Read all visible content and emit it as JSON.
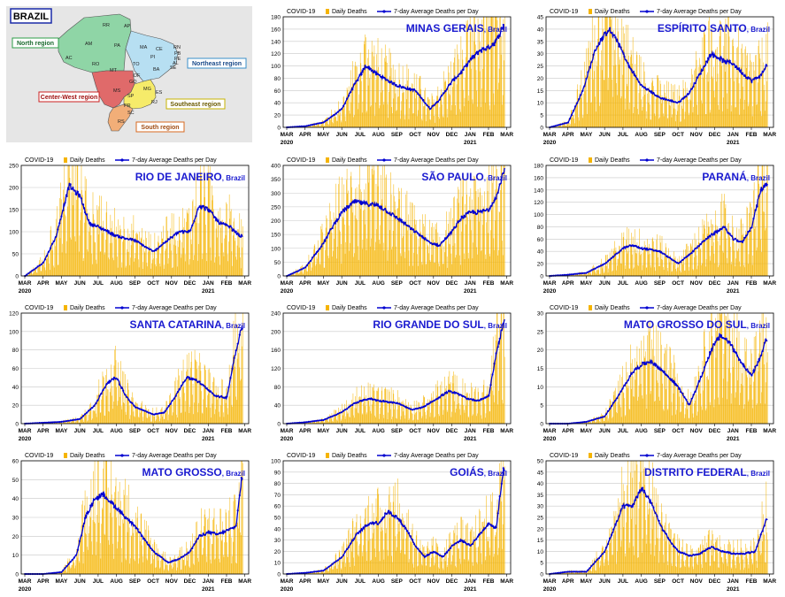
{
  "map": {
    "title": "BRAZIL",
    "regions": [
      {
        "name": "North region",
        "color": "#8fd5a6"
      },
      {
        "name": "Northeast region",
        "color": "#b7dff2"
      },
      {
        "name": "Center-West region",
        "color": "#e06a6a"
      },
      {
        "name": "Southeast region",
        "color": "#f6eb6a"
      },
      {
        "name": "South region",
        "color": "#f2ae78"
      }
    ],
    "states": [
      "RR",
      "AP",
      "AM",
      "PA",
      "MA",
      "CE",
      "RN",
      "PB",
      "PE",
      "AL",
      "SE",
      "PI",
      "AC",
      "RO",
      "TO",
      "BA",
      "MT",
      "DF",
      "GO",
      "MG",
      "ES",
      "MS",
      "SP",
      "RJ",
      "PR",
      "SC",
      "RS"
    ]
  },
  "legend": {
    "label": "COVID-19",
    "daily": "Daily Deaths",
    "average": "7-day Average Deaths per Day"
  },
  "colors": {
    "bars": "#f5b400",
    "line": "#0000d0",
    "frame": "#000000",
    "grid": "#c8c8c8"
  },
  "months": [
    "MAR",
    "APR",
    "MAY",
    "JUN",
    "JUL",
    "AUG",
    "SEP",
    "OCT",
    "NOV",
    "DEC",
    "JAN",
    "FEB",
    "MAR"
  ],
  "year_labels": [
    "2020",
    "2021"
  ],
  "chart_data": [
    {
      "type": "bar+line",
      "title": "MINAS GERAIS",
      "subtitle": "Brazil",
      "ylim": [
        0,
        180
      ],
      "ystep": 20,
      "avg_keypoints": [
        [
          0,
          0
        ],
        [
          1,
          2
        ],
        [
          2,
          8
        ],
        [
          3,
          30
        ],
        [
          3.5,
          60
        ],
        [
          4.3,
          100
        ],
        [
          5,
          85
        ],
        [
          6,
          68
        ],
        [
          7,
          60
        ],
        [
          7.8,
          30
        ],
        [
          8.3,
          45
        ],
        [
          9,
          75
        ],
        [
          9.5,
          90
        ],
        [
          10,
          110
        ],
        [
          10.5,
          125
        ],
        [
          11,
          130
        ],
        [
          11.4,
          140
        ],
        [
          11.8,
          165
        ]
      ]
    },
    {
      "type": "bar+line",
      "title": "ESPÍRITO SANTO",
      "subtitle": "Brazil",
      "ylim": [
        0,
        45
      ],
      "ystep": 5,
      "avg_keypoints": [
        [
          0,
          0
        ],
        [
          1,
          2
        ],
        [
          1.8,
          15
        ],
        [
          2.5,
          32
        ],
        [
          3.2,
          40
        ],
        [
          3.7,
          35
        ],
        [
          4.3,
          25
        ],
        [
          5,
          17
        ],
        [
          6,
          12
        ],
        [
          7,
          10
        ],
        [
          7.6,
          14
        ],
        [
          8.2,
          22
        ],
        [
          8.8,
          30
        ],
        [
          9.5,
          27
        ],
        [
          10,
          26
        ],
        [
          10.5,
          22
        ],
        [
          11,
          19
        ],
        [
          11.5,
          21
        ],
        [
          11.8,
          25
        ]
      ]
    },
    {
      "type": "bar+line",
      "title": "RIO DE JANEIRO",
      "subtitle": "Brazil",
      "ylim": [
        0,
        250
      ],
      "ystep": 50,
      "avg_keypoints": [
        [
          0,
          0
        ],
        [
          1,
          30
        ],
        [
          1.7,
          90
        ],
        [
          2.4,
          205
        ],
        [
          3,
          180
        ],
        [
          3.5,
          120
        ],
        [
          4.3,
          105
        ],
        [
          5,
          90
        ],
        [
          6,
          80
        ],
        [
          7,
          55
        ],
        [
          7.6,
          75
        ],
        [
          8.4,
          100
        ],
        [
          9,
          100
        ],
        [
          9.5,
          160
        ],
        [
          10,
          150
        ],
        [
          10.6,
          120
        ],
        [
          11.2,
          110
        ],
        [
          11.7,
          90
        ]
      ]
    },
    {
      "type": "bar+line",
      "title": "SÃO PAULO",
      "subtitle": "Brazil",
      "ylim": [
        0,
        400
      ],
      "ystep": 50,
      "avg_keypoints": [
        [
          0,
          0
        ],
        [
          1,
          30
        ],
        [
          2,
          120
        ],
        [
          2.5,
          180
        ],
        [
          3,
          230
        ],
        [
          3.7,
          270
        ],
        [
          4.5,
          260
        ],
        [
          5,
          255
        ],
        [
          6,
          210
        ],
        [
          7,
          160
        ],
        [
          7.8,
          120
        ],
        [
          8.3,
          110
        ],
        [
          9,
          160
        ],
        [
          9.5,
          210
        ],
        [
          10,
          230
        ],
        [
          10.5,
          230
        ],
        [
          11,
          240
        ],
        [
          11.5,
          300
        ],
        [
          11.8,
          380
        ]
      ]
    },
    {
      "type": "bar+line",
      "title": "PARANÁ",
      "subtitle": "Brazil",
      "ylim": [
        0,
        180
      ],
      "ystep": 20,
      "avg_keypoints": [
        [
          0,
          0
        ],
        [
          1,
          2
        ],
        [
          2,
          5
        ],
        [
          3,
          20
        ],
        [
          4,
          45
        ],
        [
          4.5,
          50
        ],
        [
          5,
          45
        ],
        [
          6,
          40
        ],
        [
          6.5,
          30
        ],
        [
          7,
          20
        ],
        [
          7.8,
          40
        ],
        [
          8.5,
          60
        ],
        [
          9,
          70
        ],
        [
          9.5,
          80
        ],
        [
          10,
          60
        ],
        [
          10.5,
          55
        ],
        [
          11,
          80
        ],
        [
          11.5,
          140
        ],
        [
          11.8,
          150
        ]
      ]
    },
    {
      "type": "bar+line",
      "title": "SANTA CATARINA",
      "subtitle": "Brazil",
      "ylim": [
        0,
        120
      ],
      "ystep": 20,
      "avg_keypoints": [
        [
          0,
          0
        ],
        [
          1,
          1
        ],
        [
          2,
          2
        ],
        [
          3,
          5
        ],
        [
          3.8,
          20
        ],
        [
          4.5,
          45
        ],
        [
          5,
          50
        ],
        [
          5.5,
          30
        ],
        [
          6,
          18
        ],
        [
          7,
          10
        ],
        [
          7.6,
          12
        ],
        [
          8.2,
          30
        ],
        [
          8.8,
          50
        ],
        [
          9.3,
          48
        ],
        [
          9.8,
          40
        ],
        [
          10.4,
          30
        ],
        [
          11,
          28
        ],
        [
          11.4,
          70
        ],
        [
          11.8,
          105
        ]
      ]
    },
    {
      "type": "bar+line",
      "title": "RIO GRANDE DO SUL",
      "subtitle": "Brazil",
      "ylim": [
        0,
        240
      ],
      "ystep": 40,
      "avg_keypoints": [
        [
          0,
          0
        ],
        [
          1,
          3
        ],
        [
          2,
          8
        ],
        [
          3,
          25
        ],
        [
          3.7,
          45
        ],
        [
          4.5,
          55
        ],
        [
          5,
          50
        ],
        [
          6,
          45
        ],
        [
          6.8,
          30
        ],
        [
          7.4,
          35
        ],
        [
          8.2,
          55
        ],
        [
          8.8,
          70
        ],
        [
          9.3,
          65
        ],
        [
          9.8,
          55
        ],
        [
          10.4,
          50
        ],
        [
          11,
          60
        ],
        [
          11.4,
          150
        ],
        [
          11.8,
          220
        ]
      ]
    },
    {
      "type": "bar+line",
      "title": "MATO GROSSO DO SUL",
      "subtitle": "Brazil",
      "ylim": [
        0,
        30
      ],
      "ystep": 5,
      "avg_keypoints": [
        [
          0,
          0
        ],
        [
          1,
          0
        ],
        [
          2,
          0.5
        ],
        [
          3,
          2
        ],
        [
          3.8,
          8
        ],
        [
          4.5,
          14
        ],
        [
          5,
          16
        ],
        [
          5.5,
          17
        ],
        [
          6,
          15
        ],
        [
          7,
          10
        ],
        [
          7.6,
          5
        ],
        [
          8.2,
          12
        ],
        [
          8.8,
          20
        ],
        [
          9.3,
          24
        ],
        [
          9.8,
          22
        ],
        [
          10.4,
          17
        ],
        [
          11,
          13
        ],
        [
          11.5,
          18
        ],
        [
          11.8,
          23
        ]
      ]
    },
    {
      "type": "bar+line",
      "title": "MATO GROSSO",
      "subtitle": "Brazil",
      "ylim": [
        0,
        60
      ],
      "ystep": 10,
      "avg_keypoints": [
        [
          0,
          0
        ],
        [
          1,
          0
        ],
        [
          2,
          1
        ],
        [
          2.8,
          10
        ],
        [
          3.3,
          30
        ],
        [
          3.8,
          40
        ],
        [
          4.3,
          42
        ],
        [
          5,
          35
        ],
        [
          6,
          25
        ],
        [
          7,
          12
        ],
        [
          7.8,
          6
        ],
        [
          8.4,
          8
        ],
        [
          9,
          12
        ],
        [
          9.5,
          20
        ],
        [
          10,
          22
        ],
        [
          10.5,
          21
        ],
        [
          11,
          23
        ],
        [
          11.5,
          25
        ],
        [
          11.8,
          50
        ]
      ]
    },
    {
      "type": "bar+line",
      "title": "GOIÁS",
      "subtitle": "Brazil",
      "ylim": [
        0,
        100
      ],
      "ystep": 10,
      "avg_keypoints": [
        [
          0,
          0
        ],
        [
          1,
          1
        ],
        [
          2,
          3
        ],
        [
          3,
          15
        ],
        [
          3.8,
          35
        ],
        [
          4.5,
          45
        ],
        [
          5,
          45
        ],
        [
          5.5,
          55
        ],
        [
          6,
          50
        ],
        [
          6.5,
          40
        ],
        [
          7,
          25
        ],
        [
          7.5,
          15
        ],
        [
          8,
          20
        ],
        [
          8.5,
          15
        ],
        [
          9,
          25
        ],
        [
          9.5,
          30
        ],
        [
          10,
          25
        ],
        [
          10.5,
          35
        ],
        [
          11,
          45
        ],
        [
          11.4,
          40
        ],
        [
          11.8,
          93
        ]
      ]
    },
    {
      "type": "bar+line",
      "title": "DISTRITO FEDERAL",
      "subtitle": "Brazil",
      "ylim": [
        0,
        50
      ],
      "ystep": 5,
      "avg_keypoints": [
        [
          0,
          0
        ],
        [
          1,
          1
        ],
        [
          2,
          1
        ],
        [
          3,
          10
        ],
        [
          3.5,
          20
        ],
        [
          4,
          30
        ],
        [
          4.5,
          30
        ],
        [
          5,
          38
        ],
        [
          5.5,
          32
        ],
        [
          6,
          22
        ],
        [
          6.5,
          15
        ],
        [
          7,
          10
        ],
        [
          7.6,
          8
        ],
        [
          8.2,
          9
        ],
        [
          8.8,
          12
        ],
        [
          9.4,
          10
        ],
        [
          10,
          9
        ],
        [
          10.6,
          9
        ],
        [
          11.2,
          10
        ],
        [
          11.8,
          24
        ]
      ]
    }
  ]
}
